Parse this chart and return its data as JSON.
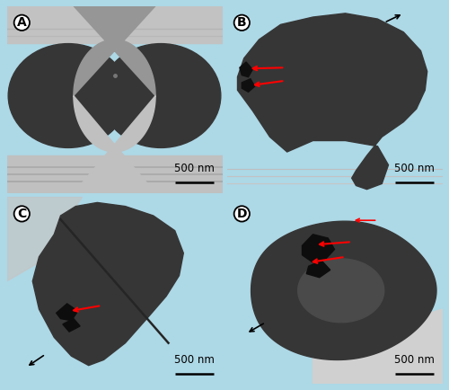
{
  "fig_bg": "#add8e6",
  "labels": [
    "A",
    "B",
    "C",
    "D"
  ],
  "scale_text": "500 nm",
  "label_fontsize": 10,
  "scale_fontsize": 8.5,
  "panel_positions": {
    "A": [
      0.015,
      0.505,
      0.48,
      0.48
    ],
    "B": [
      0.505,
      0.505,
      0.48,
      0.48
    ],
    "C": [
      0.015,
      0.015,
      0.48,
      0.48
    ],
    "D": [
      0.505,
      0.015,
      0.48,
      0.48
    ]
  },
  "bg_A": "#969696",
  "bg_B": "#b2b2b2",
  "bg_C": "#ababab",
  "bg_D": "#b8b8b8",
  "cell_dark": "#363636",
  "cell_mid": "#484848"
}
